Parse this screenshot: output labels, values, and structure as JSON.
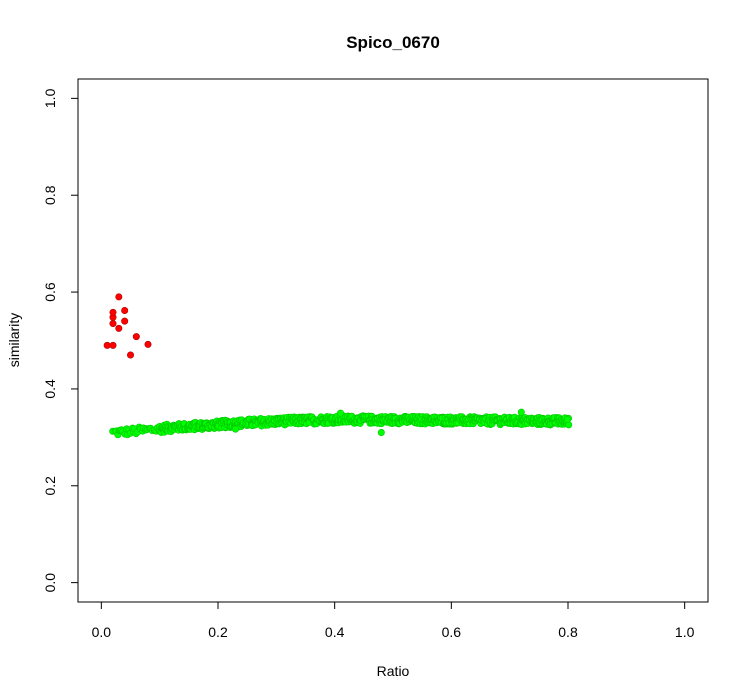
{
  "chart_data": {
    "type": "scatter",
    "title": "Spico_0670",
    "xlabel": "Ratio",
    "ylabel": "similarity",
    "xlim": [
      -0.04,
      1.04
    ],
    "ylim": [
      -0.04,
      1.04
    ],
    "xticks": [
      0.0,
      0.2,
      0.4,
      0.6,
      0.8,
      1.0
    ],
    "yticks": [
      0.0,
      0.2,
      0.4,
      0.6,
      0.8,
      1.0
    ],
    "xtick_labels": [
      "0.0",
      "0.2",
      "0.4",
      "0.6",
      "0.8",
      "1.0"
    ],
    "ytick_labels": [
      "0.0",
      "0.2",
      "0.4",
      "0.6",
      "0.8",
      "1.0"
    ],
    "grid": false,
    "legend": "none",
    "series": [
      {
        "color": "#ff0000",
        "stroke": "#b00000",
        "points": [
          [
            0.01,
            0.49
          ],
          [
            0.02,
            0.49
          ],
          [
            0.02,
            0.535
          ],
          [
            0.02,
            0.548
          ],
          [
            0.02,
            0.558
          ],
          [
            0.03,
            0.59
          ],
          [
            0.03,
            0.525
          ],
          [
            0.04,
            0.562
          ],
          [
            0.04,
            0.54
          ],
          [
            0.05,
            0.47
          ],
          [
            0.06,
            0.508
          ],
          [
            0.08,
            0.492
          ]
        ]
      },
      {
        "color": "#00ff00",
        "stroke": "#00c800",
        "x_start": 0.02,
        "x_end": 0.8,
        "x_step": 0.0025,
        "band_curve": [
          [
            0.02,
            0.31
          ],
          [
            0.05,
            0.312
          ],
          [
            0.08,
            0.315
          ],
          [
            0.12,
            0.32
          ],
          [
            0.16,
            0.323
          ],
          [
            0.22,
            0.328
          ],
          [
            0.3,
            0.333
          ],
          [
            0.4,
            0.337
          ],
          [
            0.5,
            0.336
          ],
          [
            0.6,
            0.335
          ],
          [
            0.7,
            0.334
          ],
          [
            0.8,
            0.333
          ]
        ],
        "band_halfwidth": 0.008,
        "outliers": [
          [
            0.48,
            0.31
          ],
          [
            0.23,
            0.317
          ],
          [
            0.41,
            0.35
          ],
          [
            0.72,
            0.352
          ]
        ]
      }
    ]
  }
}
